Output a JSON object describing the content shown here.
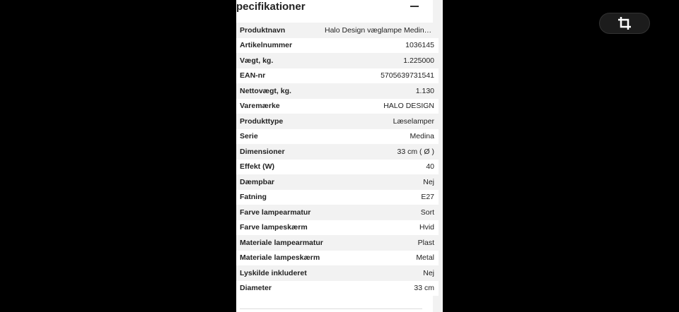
{
  "section": {
    "title": "pecifikationer",
    "collapse_icon": "minus-icon"
  },
  "specs": [
    {
      "key": "Produktnavn",
      "value": "Halo Design væglampe Medina …"
    },
    {
      "key": "Artikelnummer",
      "value": "1036145"
    },
    {
      "key": "Vægt, kg.",
      "value": "1.225000"
    },
    {
      "key": "EAN-nr",
      "value": "5705639731541"
    },
    {
      "key": "Nettovægt, kg.",
      "value": "1.130"
    },
    {
      "key": "Varemærke",
      "value": "HALO DESIGN"
    },
    {
      "key": "Produkttype",
      "value": "Læselamper"
    },
    {
      "key": "Serie",
      "value": "Medina"
    },
    {
      "key": "Dimensioner",
      "value": "33 cm ( Ø )"
    },
    {
      "key": "Effekt (W)",
      "value": "40"
    },
    {
      "key": "Dæmpbar",
      "value": "Nej"
    },
    {
      "key": "Fatning",
      "value": "E27"
    },
    {
      "key": "Farve lampearmatur",
      "value": "Sort"
    },
    {
      "key": "Farve lampeskærm",
      "value": "Hvid"
    },
    {
      "key": "Materiale lampearmatur",
      "value": "Plast"
    },
    {
      "key": "Materiale lampeskærm",
      "value": "Metal"
    },
    {
      "key": "Lyskilde inkluderet",
      "value": "Nej"
    },
    {
      "key": "Diameter",
      "value": "33 cm"
    }
  ],
  "overlay": {
    "crop_icon": "crop-icon"
  }
}
